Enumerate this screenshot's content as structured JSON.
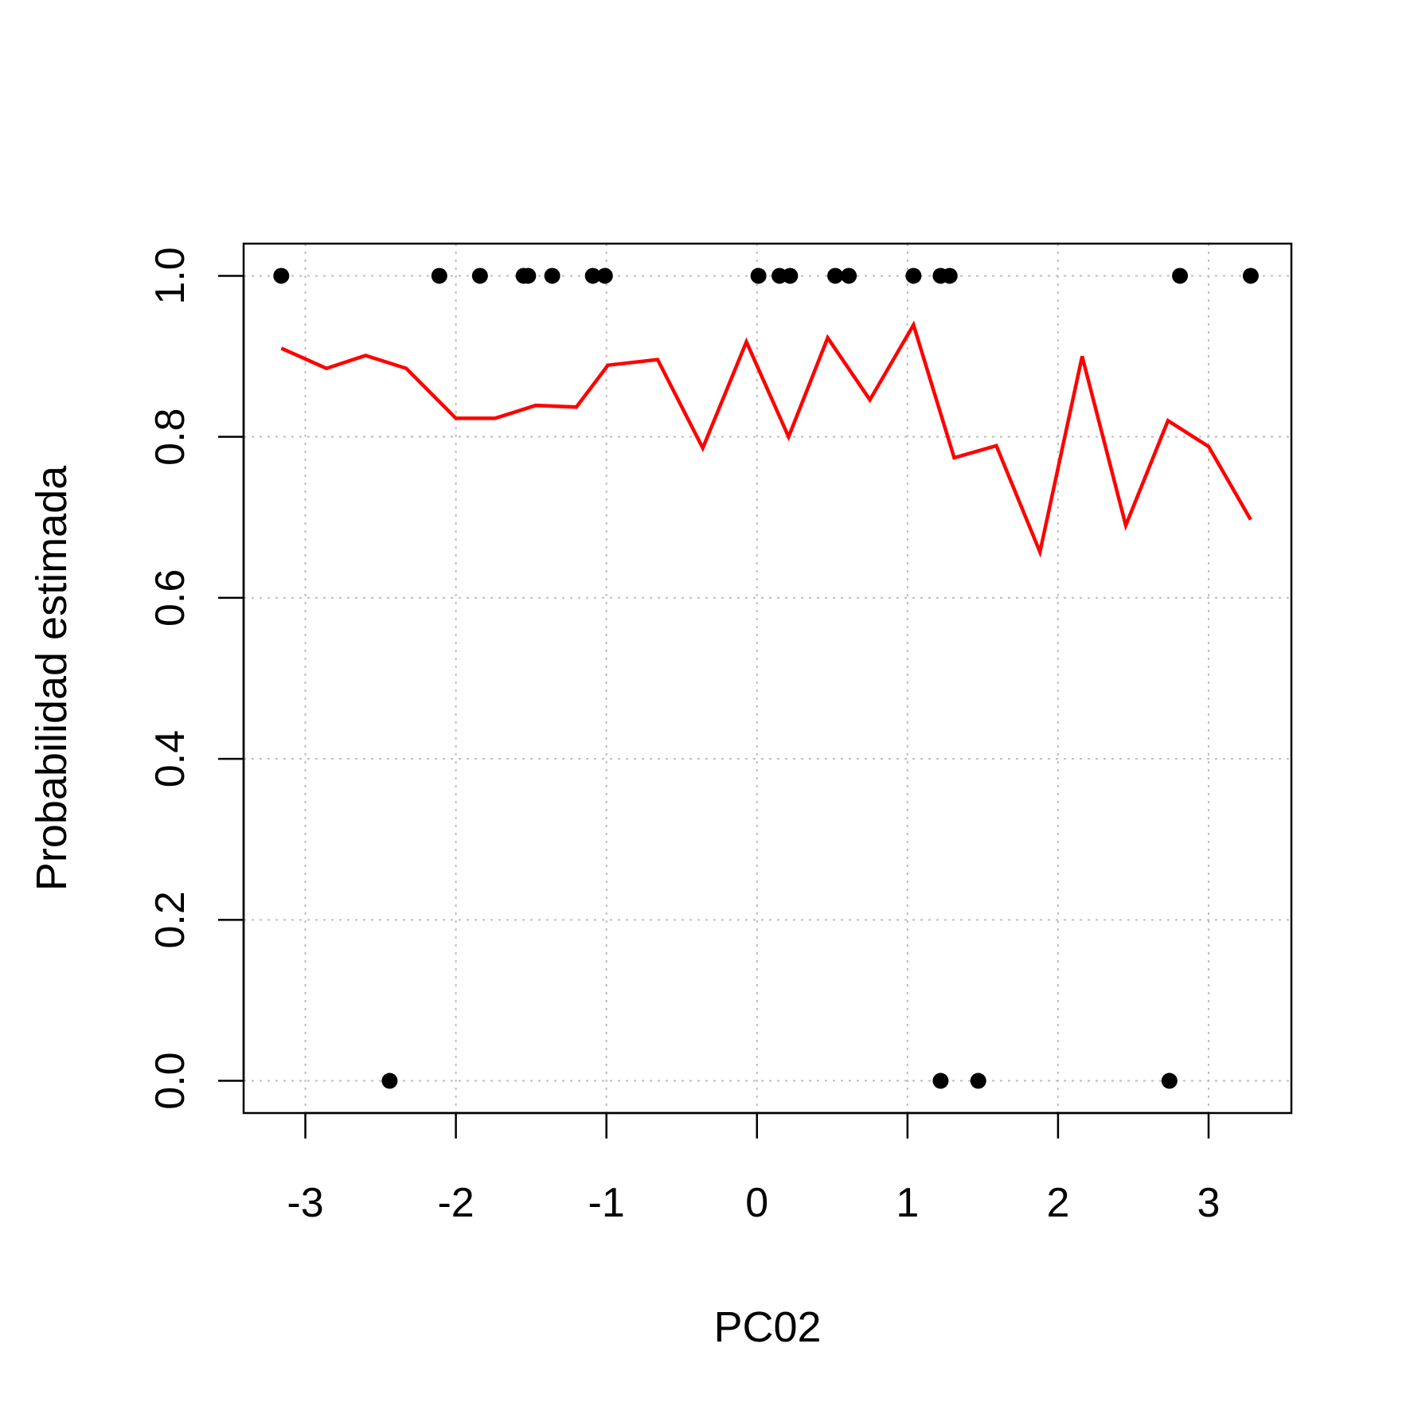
{
  "chart_data": {
    "type": "scatter",
    "xlabel": "PC02",
    "ylabel": "Probabilidad estimada",
    "xlim": [
      -3.41,
      3.55
    ],
    "ylim": [
      -0.04,
      1.04
    ],
    "x_ticks": [
      -3,
      -2,
      -1,
      0,
      1,
      2,
      3
    ],
    "x_tick_labels": [
      "-3",
      "-2",
      "-1",
      "0",
      "1",
      "2",
      "3"
    ],
    "y_ticks": [
      0.0,
      0.2,
      0.4,
      0.6,
      0.8,
      1.0
    ],
    "y_tick_labels": [
      "0.0",
      "0.2",
      "0.4",
      "0.6",
      "0.8",
      "1.0"
    ],
    "grid": true,
    "colors": {
      "points": "#000000",
      "line": "#ff0000",
      "grid": "#bebebe"
    },
    "series": [
      {
        "type": "scatter",
        "points": [
          [
            -3.16,
            1
          ],
          [
            -2.11,
            1
          ],
          [
            -1.84,
            1
          ],
          [
            -1.55,
            1
          ],
          [
            -1.52,
            1
          ],
          [
            -1.36,
            1
          ],
          [
            -1.09,
            1
          ],
          [
            -1.01,
            1
          ],
          [
            0.01,
            1
          ],
          [
            0.15,
            1
          ],
          [
            0.22,
            1
          ],
          [
            0.52,
            1
          ],
          [
            0.61,
            1
          ],
          [
            1.04,
            1
          ],
          [
            1.22,
            1
          ],
          [
            1.28,
            1
          ],
          [
            2.81,
            1
          ],
          [
            3.28,
            1
          ],
          [
            -2.44,
            0
          ],
          [
            1.22,
            0
          ],
          [
            1.47,
            0
          ],
          [
            2.74,
            0
          ]
        ]
      },
      {
        "type": "line",
        "points": [
          [
            -3.16,
            0.91
          ],
          [
            -2.86,
            0.885
          ],
          [
            -2.6,
            0.901
          ],
          [
            -2.33,
            0.885
          ],
          [
            -2.0,
            0.823
          ],
          [
            -1.74,
            0.823
          ],
          [
            -1.47,
            0.839
          ],
          [
            -1.2,
            0.837
          ],
          [
            -0.99,
            0.889
          ],
          [
            -0.66,
            0.896
          ],
          [
            -0.36,
            0.786
          ],
          [
            -0.07,
            0.918
          ],
          [
            0.21,
            0.8
          ],
          [
            0.47,
            0.923
          ],
          [
            0.75,
            0.846
          ],
          [
            1.04,
            0.939
          ],
          [
            1.31,
            0.774
          ],
          [
            1.59,
            0.789
          ],
          [
            1.88,
            0.657
          ],
          [
            2.16,
            0.9
          ],
          [
            2.45,
            0.69
          ],
          [
            2.73,
            0.82
          ],
          [
            3.0,
            0.788
          ],
          [
            3.28,
            0.697
          ]
        ]
      }
    ]
  }
}
